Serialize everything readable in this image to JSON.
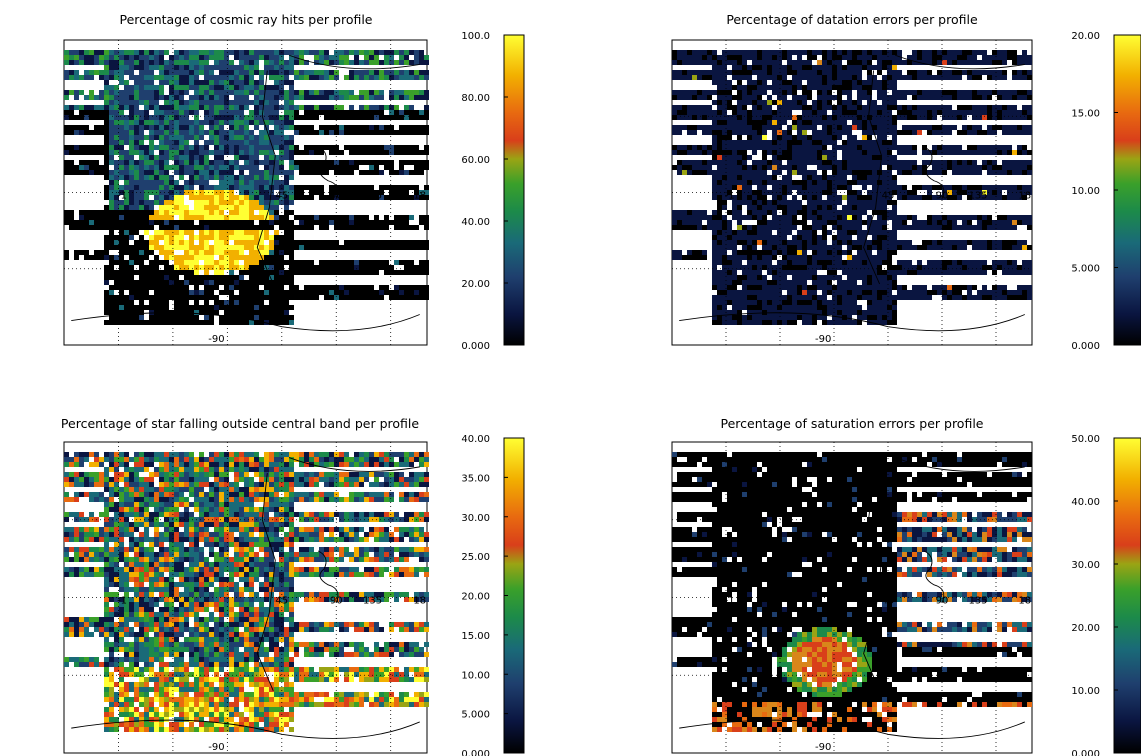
{
  "colormap": [
    "#000000",
    "#0a1540",
    "#1f3f6e",
    "#1a6a78",
    "#1c8a4a",
    "#3aa02a",
    "#9aa414",
    "#d9861a",
    "#d93f1a",
    "#e86a10",
    "#f2b000",
    "#ffff33"
  ],
  "map_labels": {
    "lon_ticks_top": [
      "-90",
      "-90",
      "-90",
      "-90"
    ],
    "lon_ticks_mid": [
      "-1",
      "45",
      "90",
      "135",
      "18"
    ],
    "lon_ticks_bottom": [
      "-90"
    ]
  },
  "chart_data": [
    {
      "type": "heatmap",
      "title": "Percentage of cosmic ray hits per profile",
      "colorbar": {
        "ticks": [
          "100.0",
          "80.00",
          "60.00",
          "40.00",
          "20.00",
          "0.000"
        ],
        "range": [
          0,
          100
        ]
      },
      "features": [
        "central swath 40-70%",
        "saturated hotspot 95-100% near -30..0 lat",
        "bands near zero"
      ]
    },
    {
      "type": "heatmap",
      "title": "Percentage of datation errors per profile",
      "colorbar": {
        "ticks": [
          "20.00",
          "15.00",
          "10.00",
          "5.000",
          "0.000"
        ],
        "range": [
          0,
          20
        ]
      },
      "features": [
        "mostly 0-2%",
        "isolated higher points"
      ]
    },
    {
      "type": "heatmap",
      "title": "Percentage of star falling outside central band per profile",
      "colorbar": {
        "ticks": [
          "40.00",
          "35.00",
          "30.00",
          "25.00",
          "20.00",
          "15.00",
          "10.00",
          "5.000",
          "0.000"
        ],
        "range": [
          0,
          40
        ]
      },
      "features": [
        "mixed 10-35% across swath",
        "high values 30-40% in south"
      ]
    },
    {
      "type": "heatmap",
      "title": "Percentage of saturation errors per profile",
      "colorbar": {
        "ticks": [
          "50.00",
          "40.00",
          "30.00",
          "20.00",
          "10.00",
          "0.000"
        ],
        "range": [
          0,
          50
        ]
      },
      "features": [
        "mostly 0%",
        "ring of 20-40% in south",
        "scattered 30-45% in southern bands"
      ]
    }
  ]
}
